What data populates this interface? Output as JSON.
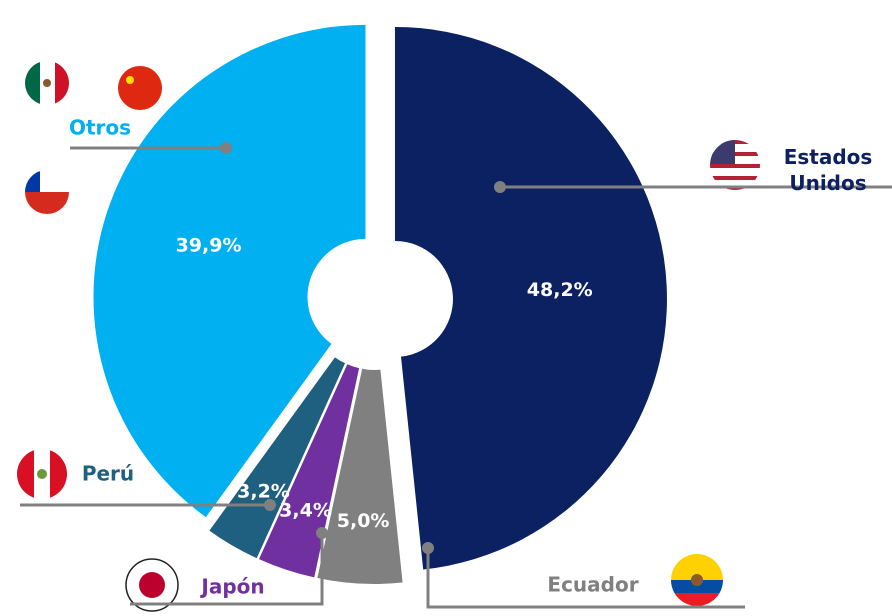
{
  "chart_data": {
    "type": "donut",
    "categories": [
      "Estados Unidos",
      "Ecuador",
      "Japón",
      "Perú",
      "Otros"
    ],
    "values": [
      48.2,
      5.0,
      3.4,
      3.2,
      39.9
    ],
    "value_labels": [
      "48,2%",
      "5,0%",
      "3,4%",
      "3,2%",
      "39,9%"
    ],
    "colors": [
      "#0b2161",
      "#808080",
      "#7030a0",
      "#1f5f7f",
      "#00b0f0"
    ]
  }
}
